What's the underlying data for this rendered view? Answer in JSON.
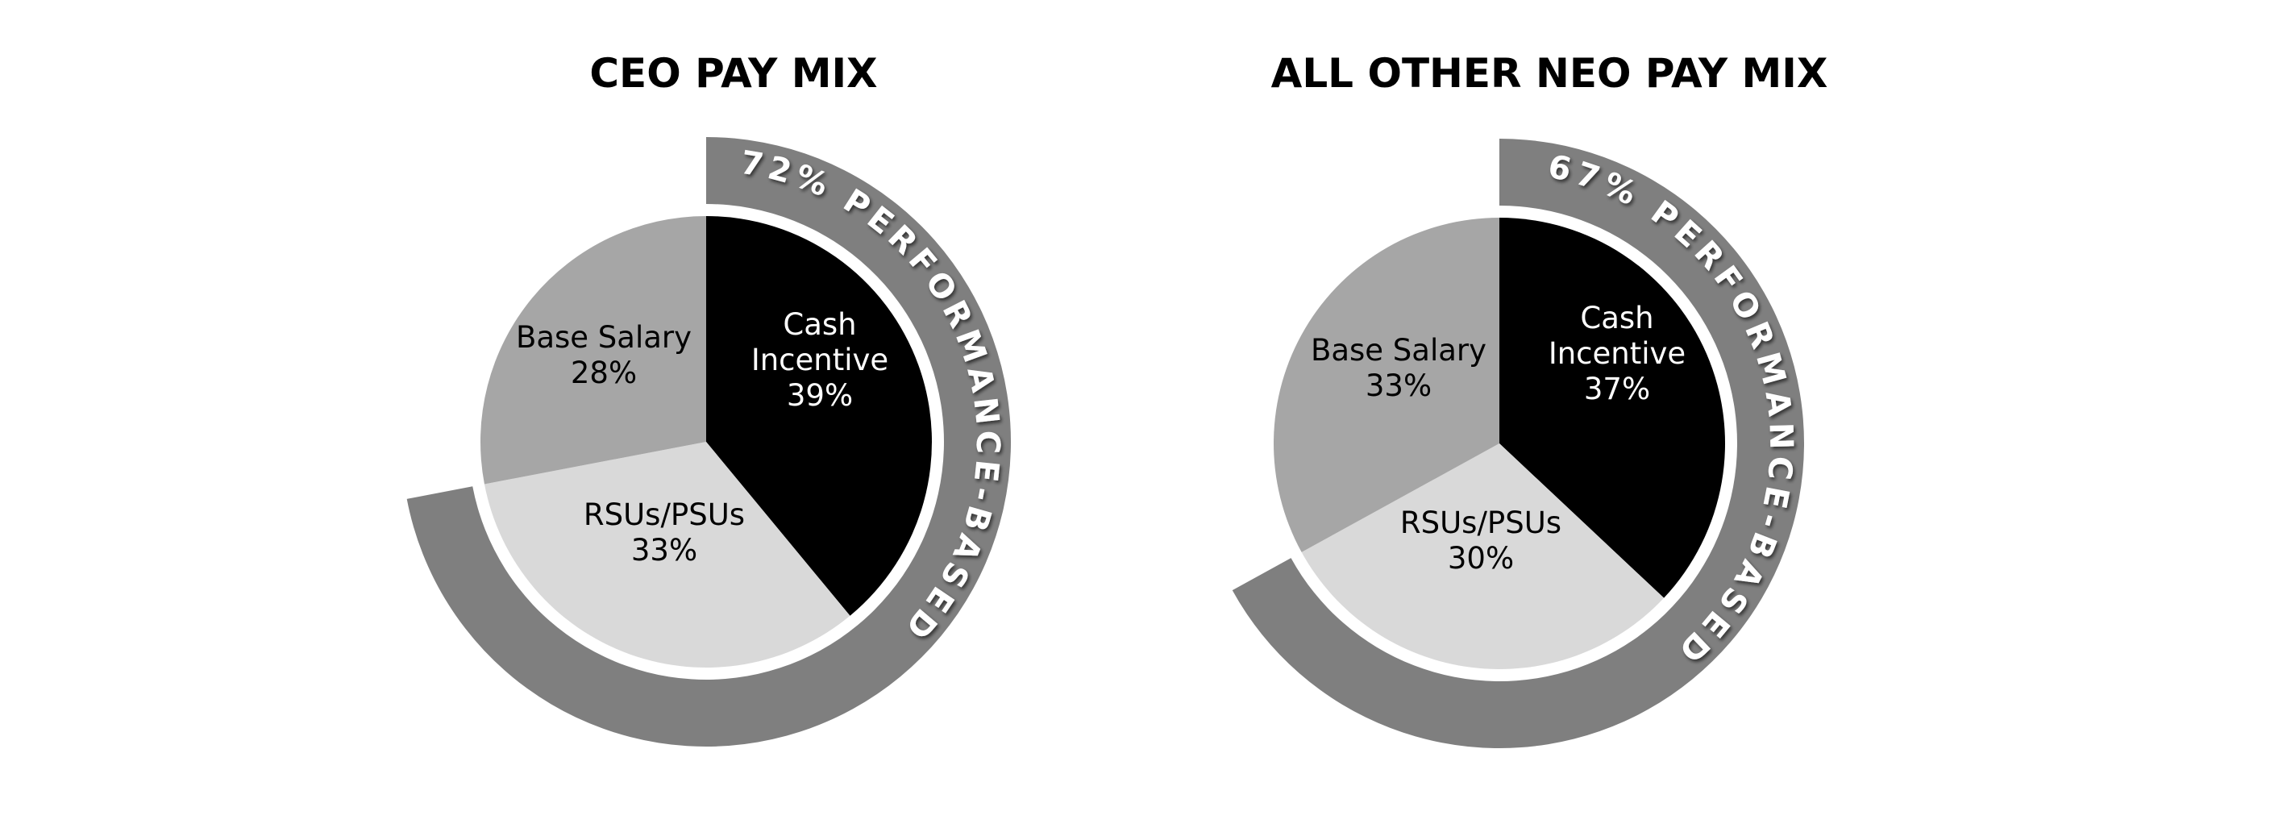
{
  "chart_data": [
    {
      "type": "pie",
      "title": "CEO PAY MIX",
      "categories": [
        "Cash Incentive",
        "RSUs/PSUs",
        "Base Salary"
      ],
      "values": [
        39,
        33,
        28
      ],
      "value_labels": [
        "39%",
        "33%",
        "28%"
      ],
      "colors": [
        "#000000",
        "#d9d9d9",
        "#a6a6a6"
      ],
      "label_colors": [
        "#ffffff",
        "#000000",
        "#000000"
      ],
      "ring": {
        "value": 72,
        "label": "72% PERFORMANCE-BASED",
        "color": "#7f7f7f"
      }
    },
    {
      "type": "pie",
      "title": "ALL OTHER NEO PAY MIX",
      "categories": [
        "Cash Incentive",
        "RSUs/PSUs",
        "Base Salary"
      ],
      "values": [
        37,
        30,
        33
      ],
      "value_labels": [
        "37%",
        "30%",
        "33%"
      ],
      "colors": [
        "#000000",
        "#d9d9d9",
        "#a6a6a6"
      ],
      "label_colors": [
        "#ffffff",
        "#000000",
        "#000000"
      ],
      "ring": {
        "value": 67,
        "label": "67% PERFORMANCE-BASED",
        "color": "#7f7f7f"
      }
    }
  ]
}
